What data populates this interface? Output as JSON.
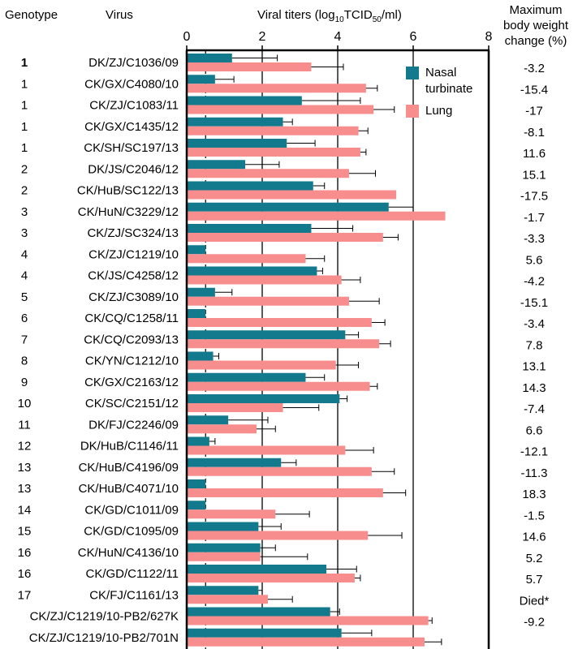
{
  "headers": {
    "genotype": "Genotype",
    "virus": "Virus",
    "titer_pre": "Viral titers (log",
    "titer_sub1": "10",
    "titer_mid": "TCID",
    "titer_sub2": "50",
    "titer_post": "/ml)",
    "weight_line1": "Maximum",
    "weight_line2": "body weight",
    "weight_line3": "change (%)"
  },
  "colors": {
    "nasal": "#137a8e",
    "lung": "#f78d8d",
    "axis": "#000000",
    "threshold": "#000000"
  },
  "chart_data": {
    "type": "bar",
    "orientation": "horizontal",
    "x_axis": {
      "range": [
        0,
        8
      ],
      "ticks": [
        0,
        2,
        4,
        6,
        8
      ],
      "label": "Viral titers (log10TCID50/ml)",
      "gridlines_at": [
        2,
        4,
        6
      ]
    },
    "detection_limit": 0.5,
    "legend": {
      "position": "top-right",
      "entries": [
        "Nasal\nturbinate",
        "Lung"
      ]
    },
    "categories": [
      {
        "genotype": "1",
        "virus": "DK/ZJ/C1036/09",
        "weight_change": "-3.2"
      },
      {
        "genotype": "1",
        "virus": "CK/GX/C4080/10",
        "weight_change": "-15.4"
      },
      {
        "genotype": "1",
        "virus": "CK/ZJ/C1083/11",
        "weight_change": "-17"
      },
      {
        "genotype": "1",
        "virus": "CK/GX/C1435/12",
        "weight_change": "-8.1"
      },
      {
        "genotype": "1",
        "virus": "CK/SH/SC197/13",
        "weight_change": "11.6"
      },
      {
        "genotype": "2",
        "virus": "DK/JS/C2046/12",
        "weight_change": "15.1"
      },
      {
        "genotype": "2",
        "virus": "CK/HuB/SC122/13",
        "weight_change": "-17.5"
      },
      {
        "genotype": "3",
        "virus": "CK/HuN/C3229/12",
        "weight_change": "-1.7"
      },
      {
        "genotype": "3",
        "virus": "CK/ZJ/SC324/13",
        "weight_change": "-3.3"
      },
      {
        "genotype": "4",
        "virus": "CK/ZJ/C1219/10",
        "weight_change": "5.6"
      },
      {
        "genotype": "4",
        "virus": "CK/JS/C4258/12",
        "weight_change": "-4.2"
      },
      {
        "genotype": "5",
        "virus": "CK/ZJ/C3089/10",
        "weight_change": "-15.1"
      },
      {
        "genotype": "6",
        "virus": "CK/CQ/C1258/11",
        "weight_change": "-3.4"
      },
      {
        "genotype": "7",
        "virus": "CK/CQ/C2093/13",
        "weight_change": "7.8"
      },
      {
        "genotype": "8",
        "virus": "CK/YN/C1212/10",
        "weight_change": "13.1"
      },
      {
        "genotype": "9",
        "virus": "CK/GX/C2163/12",
        "weight_change": "14.3"
      },
      {
        "genotype": "10",
        "virus": "CK/SC/C2151/12",
        "weight_change": "-7.4"
      },
      {
        "genotype": "11",
        "virus": "DK/FJ/C2246/09",
        "weight_change": "6.6"
      },
      {
        "genotype": "12",
        "virus": "DK/HuB/C1146/11",
        "weight_change": "-12.1"
      },
      {
        "genotype": "13",
        "virus": "CK/HuB/C4196/09",
        "weight_change": "-11.3"
      },
      {
        "genotype": "13",
        "virus": "CK/HuB/C4071/10",
        "weight_change": "18.3"
      },
      {
        "genotype": "14",
        "virus": "CK/GD/C1011/09",
        "weight_change": "-1.5"
      },
      {
        "genotype": "15",
        "virus": "CK/GD/C1095/09",
        "weight_change": "14.6"
      },
      {
        "genotype": "16",
        "virus": "CK/HuN/C4136/10",
        "weight_change": "5.2"
      },
      {
        "genotype": "16",
        "virus": "CK/GD/C1122/11",
        "weight_change": "5.7"
      },
      {
        "genotype": "17",
        "virus": "CK/FJ/C1161/13",
        "weight_change": "Died*"
      },
      {
        "genotype": "",
        "virus": "CK/ZJ/C1219/10-PB2/627K",
        "weight_change": "-9.2"
      },
      {
        "genotype": "",
        "virus": "CK/ZJ/C1219/10-PB2/701N",
        "weight_change": ""
      }
    ],
    "series": [
      {
        "name": "Nasal\nturbinate",
        "values": [
          1.2,
          0.75,
          3.05,
          2.55,
          2.65,
          1.55,
          3.35,
          5.35,
          3.3,
          0.5,
          3.45,
          0.75,
          0.5,
          4.2,
          0.7,
          3.15,
          4.05,
          1.1,
          0.6,
          2.5,
          0.5,
          0.5,
          1.9,
          1.95,
          3.7,
          1.9,
          3.8,
          4.1
        ],
        "errors": [
          1.2,
          0.5,
          1.55,
          0.25,
          0.75,
          0.9,
          0.3,
          0.65,
          1.1,
          0.0,
          0.15,
          0.45,
          0.0,
          0.35,
          0.15,
          0.5,
          0.2,
          1.05,
          0.15,
          0.4,
          0.0,
          0.0,
          0.6,
          0.4,
          0.8,
          0.1,
          0.25,
          0.8
        ]
      },
      {
        "name": "Lung",
        "values": [
          3.3,
          4.75,
          4.95,
          4.55,
          4.6,
          4.3,
          5.55,
          6.85,
          5.2,
          3.15,
          4.1,
          4.3,
          4.9,
          5.1,
          3.95,
          4.85,
          2.55,
          1.85,
          4.2,
          4.9,
          5.2,
          2.35,
          4.8,
          1.95,
          4.45,
          2.15,
          6.4,
          6.3
        ],
        "errors": [
          0.85,
          0.3,
          0.55,
          0.25,
          0.15,
          0.7,
          0.0,
          0.0,
          0.4,
          0.5,
          0.5,
          0.8,
          0.35,
          0.3,
          0.6,
          0.2,
          0.95,
          0.5,
          0.75,
          0.6,
          0.6,
          0.9,
          0.9,
          1.25,
          0.15,
          0.65,
          0.1,
          0.45
        ]
      }
    ]
  }
}
